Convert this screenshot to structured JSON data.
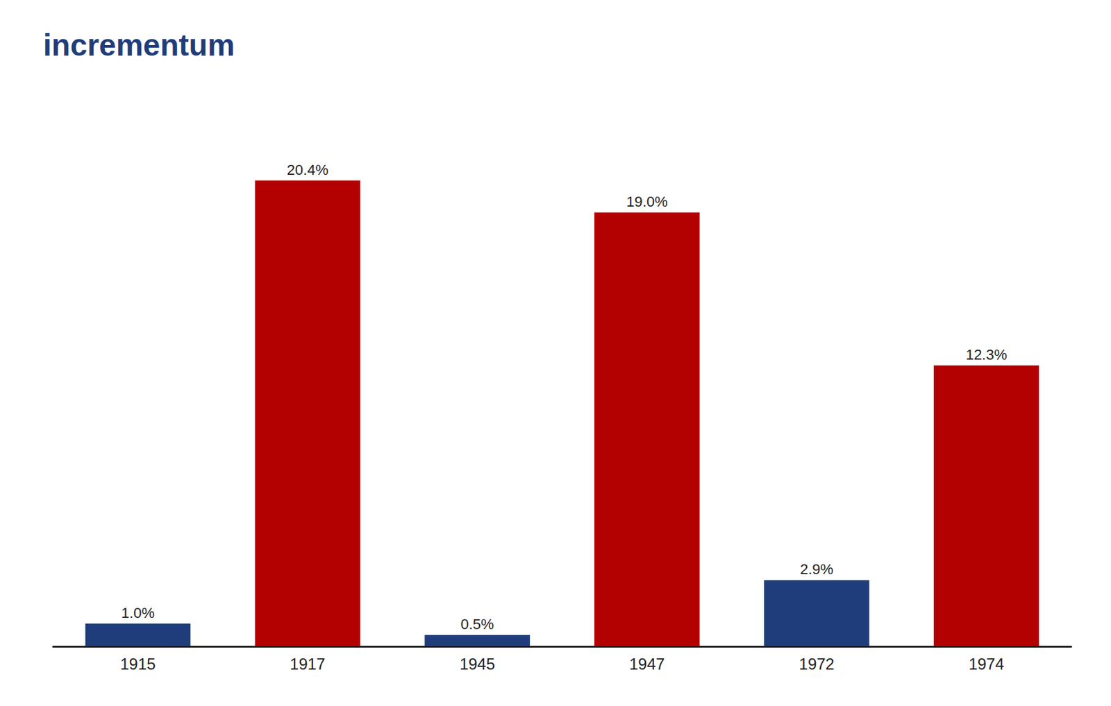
{
  "chart_data": {
    "type": "bar",
    "title": "incrementum",
    "categories": [
      "1915",
      "1917",
      "1945",
      "1947",
      "1972",
      "1974"
    ],
    "values": [
      1.0,
      20.4,
      0.5,
      19.0,
      2.9,
      12.3
    ],
    "value_labels": [
      "1.0%",
      "20.4%",
      "0.5%",
      "19.0%",
      "2.9%",
      "12.3%"
    ],
    "colors": [
      "#1f3d7a",
      "#b30000",
      "#1f3d7a",
      "#b30000",
      "#1f3d7a",
      "#b30000"
    ],
    "ylim": [
      0,
      22.5
    ],
    "data_labels": true,
    "tick_labels": "x",
    "grid": false
  }
}
